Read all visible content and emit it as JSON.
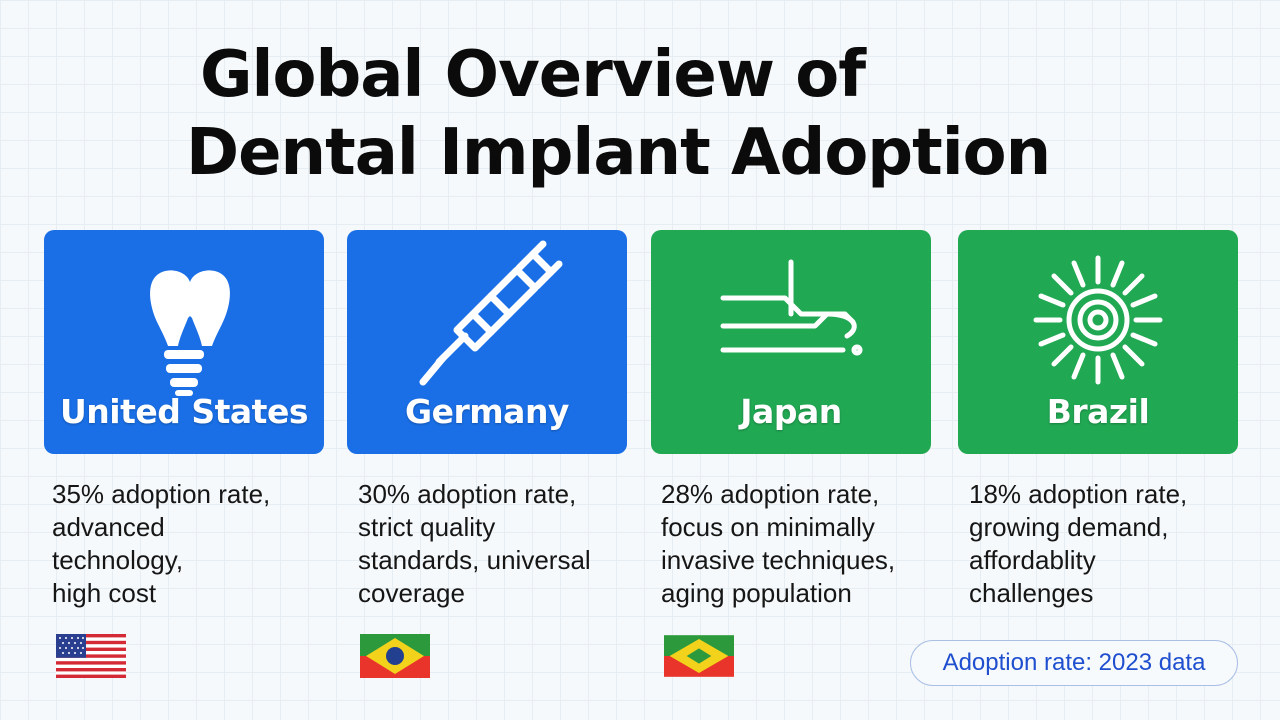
{
  "title": {
    "line1": "Global Overview of",
    "line2": "Dental Implant Adoption"
  },
  "cards": [
    {
      "country": "United States",
      "icon": "dental-implant-icon",
      "color": "#1a6fe6",
      "desc": [
        "35% adoption rate,",
        "advanced",
        "technology,",
        "high cost"
      ],
      "flag": "us-flag-icon"
    },
    {
      "country": "Germany",
      "icon": "surgical-pen-icon",
      "color": "#1a6fe6",
      "desc": [
        "30% adoption rate,",
        "strict quality",
        "standards, universal",
        "coverage"
      ],
      "flag": "brazil-flag-icon"
    },
    {
      "country": "Japan",
      "icon": "dental-chair-icon",
      "color": "#21a853",
      "desc": [
        "28% adoption rate,",
        "focus on minimally",
        "invasive techniques,",
        "aging population"
      ],
      "flag": "brazil-flag-icon"
    },
    {
      "country": "Brazil",
      "icon": "sun-icon",
      "color": "#21a853",
      "desc": [
        "18% adoption rate,",
        "growing demand,",
        "affordablity",
        "challenges"
      ],
      "flag": null
    }
  ],
  "footnote": "Adoption rate: 2023 data"
}
